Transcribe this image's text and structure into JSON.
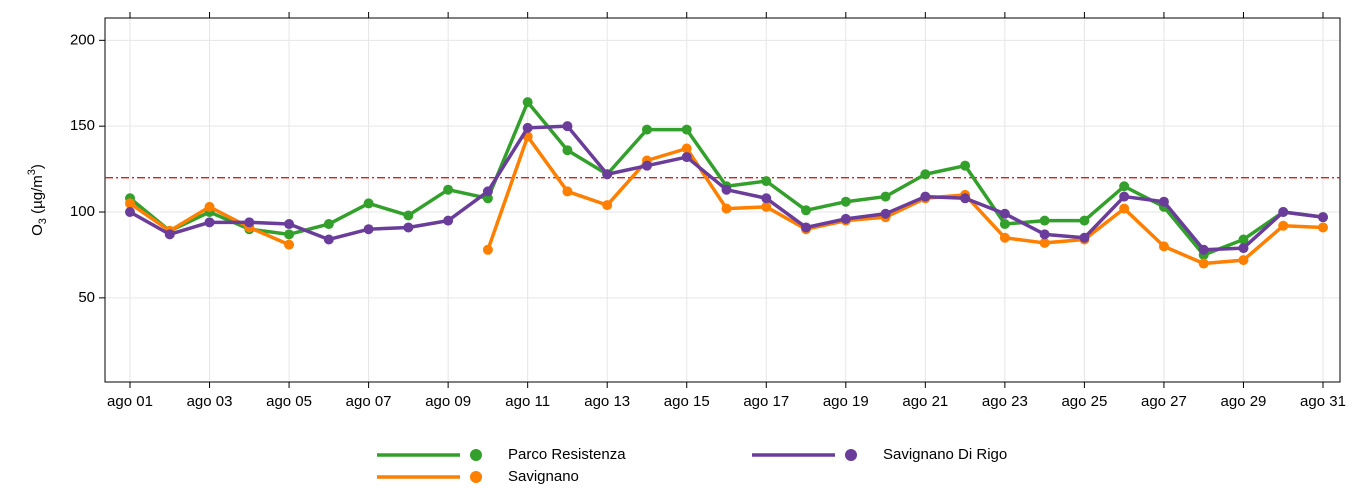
{
  "chart_data": {
    "type": "line",
    "ylabel": [
      "O",
      "3",
      " (µg/m",
      "3",
      ")"
    ],
    "categories": [
      "ago 01",
      null,
      "ago 03",
      null,
      "ago 05",
      null,
      "ago 07",
      null,
      "ago 09",
      null,
      "ago 11",
      null,
      "ago 13",
      null,
      "ago 15",
      null,
      "ago 17",
      null,
      "ago 19",
      null,
      "ago 21",
      null,
      "ago 23",
      null,
      "ago 25",
      null,
      "ago 27",
      null,
      "ago 29",
      null,
      "ago 31"
    ],
    "series": [
      {
        "name": "Parco Resistenza",
        "color": "#33a02c",
        "values": [
          108,
          89,
          100,
          90,
          87,
          93,
          105,
          98,
          113,
          108,
          164,
          136,
          122,
          148,
          148,
          115,
          118,
          101,
          106,
          109,
          122,
          127,
          93,
          95,
          95,
          115,
          103,
          75,
          84,
          100,
          97
        ]
      },
      {
        "name": "Savignano",
        "color": "#ff7f00",
        "values": [
          105,
          89,
          103,
          91,
          81,
          null,
          null,
          null,
          null,
          78,
          144,
          112,
          104,
          130,
          137,
          102,
          103,
          90,
          95,
          97,
          108,
          110,
          85,
          82,
          84,
          102,
          80,
          70,
          72,
          92,
          91
        ]
      },
      {
        "name": "Savignano Di Rigo",
        "color": "#6a3d9a",
        "values": [
          100,
          87,
          94,
          94,
          93,
          84,
          90,
          91,
          95,
          112,
          149,
          150,
          122,
          127,
          132,
          113,
          108,
          91,
          96,
          99,
          109,
          108,
          99,
          87,
          85,
          109,
          106,
          78,
          79,
          100,
          97
        ]
      }
    ],
    "hline": {
      "value": 120,
      "color": "#e31a1c"
    },
    "ylim": [
      1,
      213
    ],
    "yticks": [
      50,
      100,
      150,
      200
    ],
    "grid": true
  }
}
